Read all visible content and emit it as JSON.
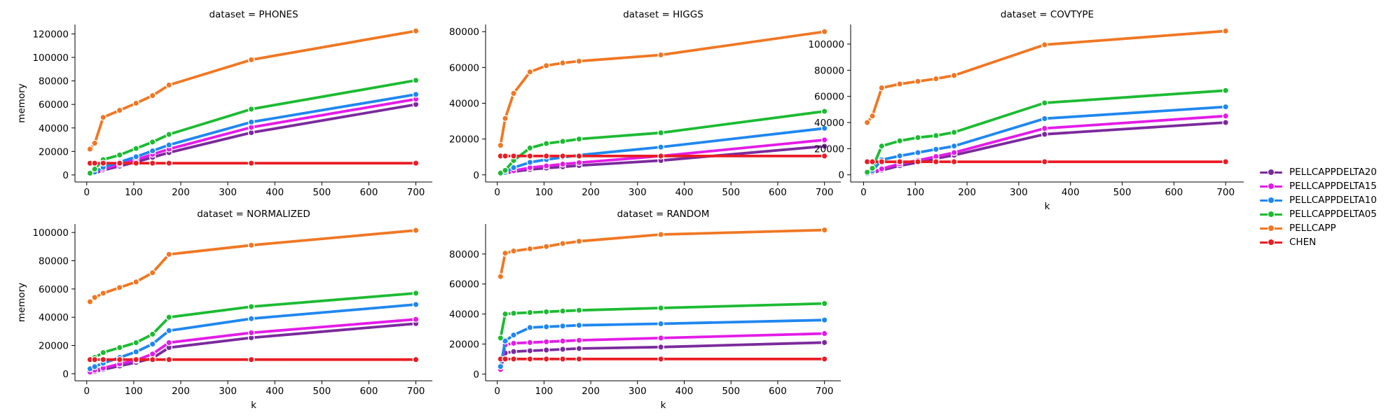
{
  "colors": {
    "PELLCAPPDELTA20": "#7b2a9c",
    "PELLCAPPDELTA15": "#e41be8",
    "PELLCAPPDELTA10": "#1f87f0",
    "PELLCAPPDELTA05": "#1cbb32",
    "PELLCAPP": "#f07723",
    "CHEN": "#ea1c24"
  },
  "legend": {
    "placement": "right",
    "items": [
      "PELLCAPPDELTA20",
      "PELLCAPPDELTA15",
      "PELLCAPPDELTA10",
      "PELLCAPPDELTA05",
      "PELLCAPP",
      "CHEN"
    ]
  },
  "chart_data": [
    {
      "type": "line",
      "title": "dataset = PHONES",
      "xlabel": "",
      "ylabel": "memory",
      "xlim": [
        -25,
        735
      ],
      "ylim": [
        -6000,
        128000
      ],
      "xticks": [
        0,
        100,
        200,
        300,
        400,
        500,
        600,
        700
      ],
      "yticks": [
        0,
        20000,
        40000,
        60000,
        80000,
        100000,
        120000
      ],
      "x": [
        7,
        17,
        35,
        70,
        105,
        140,
        175,
        350,
        700
      ],
      "series": [
        {
          "name": "PELLCAPPDELTA20",
          "values": [
            500,
            1500,
            4000,
            7500,
            11000,
            15000,
            19000,
            36000,
            60000
          ]
        },
        {
          "name": "PELLCAPPDELTA15",
          "values": [
            700,
            2000,
            5000,
            9000,
            13000,
            17500,
            22000,
            40500,
            64500
          ]
        },
        {
          "name": "PELLCAPPDELTA10",
          "values": [
            1000,
            2500,
            6500,
            11000,
            15500,
            20500,
            25500,
            45000,
            68500
          ]
        },
        {
          "name": "PELLCAPPDELTA05",
          "values": [
            1500,
            5000,
            13000,
            17000,
            22500,
            28000,
            34500,
            56000,
            80500
          ]
        },
        {
          "name": "PELLCAPP",
          "values": [
            22000,
            27000,
            49000,
            55000,
            61000,
            67500,
            76500,
            98000,
            122500
          ]
        },
        {
          "name": "CHEN",
          "values": [
            10000,
            10000,
            10000,
            10000,
            10000,
            10000,
            10000,
            10000,
            10000
          ]
        }
      ]
    },
    {
      "type": "line",
      "title": "dataset = HIGGS",
      "xlabel": "",
      "ylabel": "",
      "xlim": [
        -25,
        735
      ],
      "ylim": [
        -4000,
        84000
      ],
      "xticks": [
        0,
        100,
        200,
        300,
        400,
        500,
        600,
        700
      ],
      "yticks": [
        0,
        20000,
        40000,
        60000,
        80000
      ],
      "x": [
        7,
        17,
        35,
        70,
        105,
        140,
        175,
        350,
        700
      ],
      "series": [
        {
          "name": "PELLCAPPDELTA20",
          "values": [
            300,
            800,
            1800,
            3000,
            3800,
            4500,
            5200,
            8000,
            16000
          ]
        },
        {
          "name": "PELLCAPPDELTA15",
          "values": [
            400,
            1000,
            2300,
            4000,
            5000,
            6000,
            6800,
            10500,
            19500
          ]
        },
        {
          "name": "PELLCAPPDELTA10",
          "values": [
            500,
            1500,
            4000,
            7000,
            8500,
            9800,
            11000,
            15500,
            26000
          ]
        },
        {
          "name": "PELLCAPPDELTA05",
          "values": [
            1000,
            2500,
            8000,
            15000,
            17500,
            18700,
            20000,
            23500,
            35500
          ]
        },
        {
          "name": "PELLCAPP",
          "values": [
            16500,
            31500,
            45500,
            57500,
            61000,
            62500,
            63500,
            67000,
            80000
          ]
        },
        {
          "name": "CHEN",
          "values": [
            10500,
            10500,
            10500,
            10500,
            10500,
            10500,
            10500,
            10500,
            10500
          ]
        }
      ]
    },
    {
      "type": "line",
      "title": "dataset = COVTYPE",
      "xlabel": "k",
      "ylabel": "",
      "xlim": [
        -25,
        735
      ],
      "ylim": [
        -5500,
        115000
      ],
      "xticks": [
        0,
        100,
        200,
        300,
        400,
        500,
        600,
        700
      ],
      "yticks": [
        0,
        20000,
        40000,
        60000,
        80000,
        100000
      ],
      "x": [
        7,
        17,
        35,
        70,
        105,
        140,
        175,
        350,
        700
      ],
      "series": [
        {
          "name": "PELLCAPPDELTA20",
          "values": [
            500,
            1500,
            3500,
            7000,
            9500,
            12500,
            15000,
            31000,
            40000
          ]
        },
        {
          "name": "PELLCAPPDELTA15",
          "values": [
            700,
            2000,
            4500,
            8500,
            11000,
            14000,
            17000,
            35500,
            45000
          ]
        },
        {
          "name": "PELLCAPPDELTA10",
          "values": [
            1000,
            3000,
            11500,
            14500,
            17000,
            19500,
            22000,
            43000,
            52000
          ]
        },
        {
          "name": "PELLCAPPDELTA05",
          "values": [
            2000,
            5000,
            22000,
            26000,
            28500,
            30000,
            32500,
            55000,
            64500
          ]
        },
        {
          "name": "PELLCAPP",
          "values": [
            40000,
            45000,
            66500,
            69500,
            71500,
            73500,
            76000,
            99500,
            110000
          ]
        },
        {
          "name": "CHEN",
          "values": [
            10000,
            10000,
            10000,
            10000,
            10000,
            10000,
            10000,
            10000,
            10000
          ]
        }
      ]
    },
    {
      "type": "line",
      "title": "dataset = NORMALIZED",
      "xlabel": "k",
      "ylabel": "memory",
      "xlim": [
        -25,
        735
      ],
      "ylim": [
        -5000,
        106000
      ],
      "xticks": [
        0,
        100,
        200,
        300,
        400,
        500,
        600,
        700
      ],
      "yticks": [
        0,
        20000,
        40000,
        60000,
        80000,
        100000
      ],
      "x": [
        7,
        17,
        35,
        70,
        105,
        140,
        175,
        350,
        700
      ],
      "series": [
        {
          "name": "PELLCAPPDELTA20",
          "values": [
            800,
            1500,
            3000,
            5500,
            8000,
            11000,
            18500,
            25500,
            35500
          ]
        },
        {
          "name": "PELLCAPPDELTA15",
          "values": [
            1200,
            2500,
            4000,
            7000,
            9500,
            14000,
            22000,
            29000,
            38500
          ]
        },
        {
          "name": "PELLCAPPDELTA10",
          "values": [
            3500,
            5000,
            7500,
            11500,
            15500,
            21000,
            30500,
            39000,
            49000
          ]
        },
        {
          "name": "PELLCAPPDELTA05",
          "values": [
            10000,
            11500,
            15000,
            18500,
            22000,
            28000,
            40000,
            47500,
            57000
          ]
        },
        {
          "name": "PELLCAPP",
          "values": [
            51000,
            54000,
            57000,
            61000,
            65000,
            71500,
            84500,
            91000,
            101500
          ]
        },
        {
          "name": "CHEN",
          "values": [
            10000,
            10000,
            10000,
            10000,
            10000,
            10000,
            10000,
            10000,
            10000
          ]
        }
      ]
    },
    {
      "type": "line",
      "title": "dataset = RANDOM",
      "xlabel": "k",
      "ylabel": "",
      "xlim": [
        -25,
        735
      ],
      "ylim": [
        -4500,
        100000
      ],
      "xticks": [
        0,
        100,
        200,
        300,
        400,
        500,
        600,
        700
      ],
      "yticks": [
        0,
        20000,
        40000,
        60000,
        80000
      ],
      "x": [
        7,
        17,
        35,
        70,
        105,
        140,
        175,
        350,
        700
      ],
      "series": [
        {
          "name": "PELLCAPPDELTA20",
          "values": [
            4000,
            14000,
            15000,
            15500,
            16000,
            16500,
            17000,
            18000,
            21000
          ]
        },
        {
          "name": "PELLCAPPDELTA15",
          "values": [
            3000,
            19500,
            20500,
            21000,
            21500,
            22000,
            22500,
            24000,
            27000
          ]
        },
        {
          "name": "PELLCAPPDELTA10",
          "values": [
            5000,
            22000,
            26000,
            31000,
            31500,
            32000,
            32500,
            33500,
            36000
          ]
        },
        {
          "name": "PELLCAPPDELTA05",
          "values": [
            24000,
            40000,
            40500,
            41000,
            41500,
            42000,
            42500,
            44000,
            47000
          ]
        },
        {
          "name": "PELLCAPP",
          "values": [
            65000,
            80500,
            82000,
            83500,
            85000,
            87000,
            88500,
            93000,
            96000
          ]
        },
        {
          "name": "CHEN",
          "values": [
            10000,
            10000,
            10000,
            10000,
            10000,
            10000,
            10000,
            10000,
            10000
          ]
        }
      ]
    }
  ]
}
